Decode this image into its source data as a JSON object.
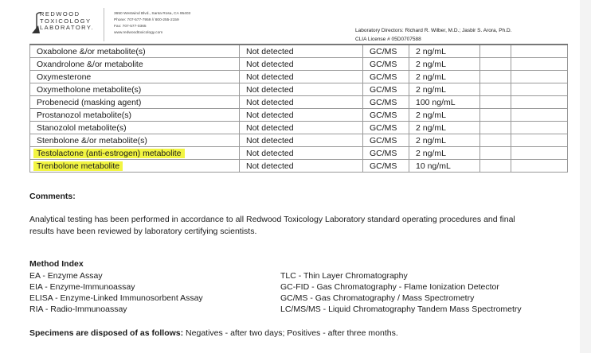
{
  "header": {
    "logo_lines": [
      "REDWOOD",
      "TOXICOLOGY",
      "LABORATORY."
    ],
    "address_lines": [
      "3650 Westwind Blvd., Santa Rosa, CA 95403",
      "Phone: 707-577-7959 // 800-255-2159",
      "Fax: 707-577-0365",
      "www.redwoodtoxicology.com"
    ],
    "directors": "Laboratory Directors: Richard R. Wilber, M.D.; Jasbir S. Arora, Ph.D.",
    "clia": "CLIA License # 05D0707588"
  },
  "table": {
    "rows": [
      {
        "analyte": "Oxabolone &/or metabolite(s)",
        "result": "Not detected",
        "method": "GC/MS",
        "cutoff": "2 ng/mL",
        "highlight": false
      },
      {
        "analyte": "Oxandrolone &/or metabolite",
        "result": "Not detected",
        "method": "GC/MS",
        "cutoff": "2 ng/mL",
        "highlight": false
      },
      {
        "analyte": "Oxymesterone",
        "result": "Not detected",
        "method": "GC/MS",
        "cutoff": "2 ng/mL",
        "highlight": false
      },
      {
        "analyte": "Oxymetholone metabolite(s)",
        "result": "Not detected",
        "method": "GC/MS",
        "cutoff": "2 ng/mL",
        "highlight": false
      },
      {
        "analyte": "Probenecid (masking agent)",
        "result": "Not detected",
        "method": "GC/MS",
        "cutoff": "100 ng/mL",
        "highlight": false
      },
      {
        "analyte": "Prostanozol metabolite(s)",
        "result": "Not detected",
        "method": "GC/MS",
        "cutoff": "2 ng/mL",
        "highlight": false
      },
      {
        "analyte": "Stanozolol metabolite(s)",
        "result": "Not detected",
        "method": "GC/MS",
        "cutoff": "2 ng/mL",
        "highlight": false
      },
      {
        "analyte": "Stenbolone &/or metabolite(s)",
        "result": "Not detected",
        "method": "GC/MS",
        "cutoff": "2 ng/mL",
        "highlight": false
      },
      {
        "analyte": "Testolactone (anti-estrogen) metabolite",
        "result": "Not detected",
        "method": "GC/MS",
        "cutoff": "2 ng/mL",
        "highlight": true
      },
      {
        "analyte": "Trenbolone metabolite",
        "result": "Not detected",
        "method": "GC/MS",
        "cutoff": "10 ng/mL",
        "highlight": true
      }
    ]
  },
  "highlight_color": "#f2f542",
  "comments": {
    "heading": "Comments:",
    "line1": "Analytical testing has been performed in accordance to all Redwood Toxicology Laboratory standard operating procedures and final",
    "line2": "results have been reviewed by laboratory certifying scientists."
  },
  "method_index": {
    "heading": "Method Index",
    "left": [
      "EA - Enzyme Assay",
      "EIA - Enzyme-Immunoassay",
      "ELISA - Enzyme-Linked Immunosorbent Assay",
      "RIA - Radio-Immunoassay"
    ],
    "right": [
      "TLC - Thin Layer Chromatography",
      "GC-FID - Gas Chromatography - Flame Ionization Detector",
      "GC/MS - Gas Chromatography / Mass Spectrometry",
      "LC/MS/MS - Liquid Chromatography Tandem Mass Spectrometry"
    ]
  },
  "disposal": {
    "label": "Specimens are disposed of as follows:",
    "text": " Negatives - after two days; Positives - after three months."
  }
}
